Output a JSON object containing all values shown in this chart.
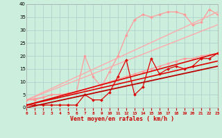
{
  "xlabel": "Vent moyen/en rafales ( km/h )",
  "xlim": [
    0,
    23
  ],
  "ylim": [
    0,
    40
  ],
  "xticks": [
    0,
    1,
    2,
    3,
    4,
    5,
    6,
    7,
    8,
    9,
    10,
    11,
    12,
    13,
    14,
    15,
    16,
    17,
    18,
    19,
    20,
    21,
    22,
    23
  ],
  "yticks": [
    0,
    5,
    10,
    15,
    20,
    25,
    30,
    35,
    40
  ],
  "bg_color": "#cceedd",
  "grid_color": "#aacccc",
  "lines": [
    {
      "x": [
        0,
        1,
        2,
        3,
        4,
        5,
        6,
        7,
        8,
        9,
        10,
        11,
        12,
        13,
        14,
        15,
        16,
        17,
        18,
        19,
        20,
        21,
        22,
        23
      ],
      "y": [
        3,
        3,
        4,
        5,
        5,
        5,
        6,
        20,
        12,
        8,
        14,
        20,
        28,
        34,
        36,
        35,
        36,
        37,
        37,
        36,
        32,
        33,
        38,
        36
      ],
      "color": "#ff9999",
      "lw": 0.9,
      "marker": "D",
      "ms": 2.0
    },
    {
      "x": [
        0,
        23
      ],
      "y": [
        3,
        37
      ],
      "color": "#ffaaaa",
      "lw": 1.0,
      "marker": null,
      "ms": 0
    },
    {
      "x": [
        0,
        23
      ],
      "y": [
        3,
        32
      ],
      "color": "#ffaaaa",
      "lw": 1.0,
      "marker": null,
      "ms": 0
    },
    {
      "x": [
        0,
        1,
        2,
        3,
        4,
        5,
        6,
        7,
        8,
        9,
        10,
        11,
        12,
        13,
        14,
        15,
        16,
        17,
        18,
        19,
        20,
        21,
        22,
        23
      ],
      "y": [
        3,
        3.5,
        4,
        5,
        5,
        5.5,
        6,
        7,
        8,
        9,
        10,
        11,
        12,
        13,
        14,
        15,
        16,
        17,
        18,
        19,
        19,
        20,
        20.5,
        21
      ],
      "color": "#ff9999",
      "lw": 0.9,
      "marker": "D",
      "ms": 2.0
    },
    {
      "x": [
        0,
        1,
        2,
        3,
        4,
        5,
        6,
        7,
        8,
        9,
        10,
        11,
        12,
        13,
        14,
        15,
        16,
        17,
        18,
        19,
        20,
        21,
        22,
        23
      ],
      "y": [
        1,
        1,
        1,
        1,
        1,
        1,
        1,
        5,
        3,
        3,
        6,
        12,
        18.5,
        5,
        8,
        19,
        13,
        15,
        16,
        15,
        16,
        19,
        19,
        21
      ],
      "color": "#dd0000",
      "lw": 0.9,
      "marker": "D",
      "ms": 2.0
    },
    {
      "x": [
        0,
        23
      ],
      "y": [
        1,
        21
      ],
      "color": "#dd0000",
      "lw": 1.2,
      "marker": null,
      "ms": 0
    },
    {
      "x": [
        0,
        23
      ],
      "y": [
        1,
        18
      ],
      "color": "#dd0000",
      "lw": 1.2,
      "marker": null,
      "ms": 0
    },
    {
      "x": [
        0,
        23
      ],
      "y": [
        0,
        16
      ],
      "color": "#bb0000",
      "lw": 1.3,
      "marker": null,
      "ms": 0
    }
  ]
}
